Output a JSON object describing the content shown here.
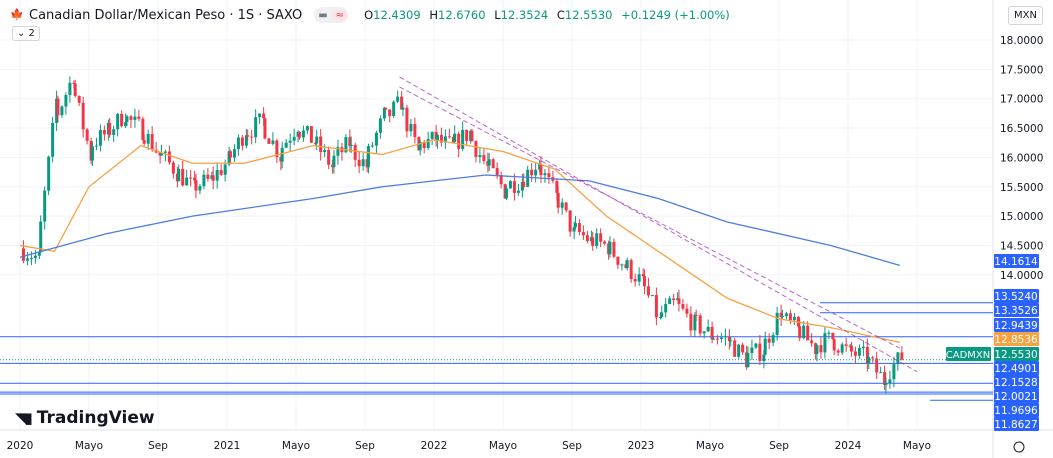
{
  "header": {
    "title": "Canadian Dollar/Mexican Peso · 1S · SAXO",
    "open_label": "O",
    "open": "12.4309",
    "high_label": "H",
    "high": "12.6760",
    "low_label": "L",
    "low": "12.3524",
    "close_label": "C",
    "close": "12.5530",
    "change": "+0.1249 (+1.00%)",
    "indicators_count": "⌄ 2",
    "currency": "MXN"
  },
  "logo": "TradingView",
  "colors": {
    "up": "#089981",
    "down": "#f23645",
    "ma_fast": "#f7a140",
    "ma_slow": "#4c7de0",
    "level": "#2962ff",
    "trend": "#9c27b0"
  },
  "chart_data": {
    "type": "candlestick",
    "symbol_label": "CADMXN",
    "price_ticks": [
      "18.0000",
      "17.5000",
      "17.0000",
      "16.5000",
      "16.0000",
      "15.5000",
      "15.0000",
      "14.5000",
      "14.0000"
    ],
    "time_ticks": [
      {
        "label": "2020",
        "date": "2020-01"
      },
      {
        "label": "Mayo",
        "date": "2020-05"
      },
      {
        "label": "Sep",
        "date": "2020-09"
      },
      {
        "label": "2021",
        "date": "2021-01"
      },
      {
        "label": "Mayo",
        "date": "2021-05"
      },
      {
        "label": "Sep",
        "date": "2021-09"
      },
      {
        "label": "2022",
        "date": "2022-01"
      },
      {
        "label": "Mayo",
        "date": "2022-05"
      },
      {
        "label": "Sep",
        "date": "2022-09"
      },
      {
        "label": "2023",
        "date": "2023-01"
      },
      {
        "label": "Mayo",
        "date": "2023-05"
      },
      {
        "label": "Sep",
        "date": "2023-09"
      },
      {
        "label": "2024",
        "date": "2024-01"
      },
      {
        "label": "Mayo",
        "date": "2024-05"
      }
    ],
    "monthly_close": [
      [
        "2020-01",
        14.45
      ],
      [
        "2020-02",
        14.3
      ],
      [
        "2020-03",
        16.6
      ],
      [
        "2020-04",
        17.3
      ],
      [
        "2020-05",
        16.2
      ],
      [
        "2020-06",
        16.4
      ],
      [
        "2020-07",
        16.7
      ],
      [
        "2020-08",
        16.5
      ],
      [
        "2020-09",
        16.1
      ],
      [
        "2020-10",
        15.8
      ],
      [
        "2020-11",
        15.5
      ],
      [
        "2020-12",
        15.6
      ],
      [
        "2021-01",
        15.9
      ],
      [
        "2021-02",
        16.4
      ],
      [
        "2021-03",
        16.6
      ],
      [
        "2021-04",
        16.1
      ],
      [
        "2021-05",
        16.5
      ],
      [
        "2021-06",
        16.3
      ],
      [
        "2021-07",
        15.9
      ],
      [
        "2021-08",
        16.2
      ],
      [
        "2021-09",
        15.9
      ],
      [
        "2021-10",
        16.6
      ],
      [
        "2021-11",
        16.9
      ],
      [
        "2021-12",
        16.2
      ],
      [
        "2022-01",
        16.3
      ],
      [
        "2022-02",
        16.2
      ],
      [
        "2022-03",
        16.4
      ],
      [
        "2022-04",
        15.9
      ],
      [
        "2022-05",
        15.5
      ],
      [
        "2022-06",
        15.6
      ],
      [
        "2022-07",
        15.9
      ],
      [
        "2022-08",
        15.4
      ],
      [
        "2022-09",
        14.8
      ],
      [
        "2022-10",
        14.6
      ],
      [
        "2022-11",
        14.5
      ],
      [
        "2022-12",
        14.2
      ],
      [
        "2023-01",
        13.9
      ],
      [
        "2023-02",
        13.3
      ],
      [
        "2023-03",
        13.5
      ],
      [
        "2023-04",
        13.2
      ],
      [
        "2023-05",
        13.0
      ],
      [
        "2023-06",
        12.9
      ],
      [
        "2023-07",
        12.6
      ],
      [
        "2023-08",
        12.7
      ],
      [
        "2023-09",
        13.3
      ],
      [
        "2023-10",
        13.1
      ],
      [
        "2023-11",
        12.8
      ],
      [
        "2023-12",
        12.9
      ],
      [
        "2024-01",
        12.7
      ],
      [
        "2024-02",
        12.6
      ],
      [
        "2024-03",
        12.25
      ],
      [
        "2024-04",
        12.553
      ]
    ],
    "ma_fast": [
      [
        "2020-01",
        14.5
      ],
      [
        "2020-03",
        14.4
      ],
      [
        "2020-05",
        15.5
      ],
      [
        "2020-08",
        16.2
      ],
      [
        "2020-11",
        15.9
      ],
      [
        "2021-02",
        15.9
      ],
      [
        "2021-06",
        16.2
      ],
      [
        "2021-10",
        16.05
      ],
      [
        "2022-01",
        16.3
      ],
      [
        "2022-05",
        16.1
      ],
      [
        "2022-08",
        15.8
      ],
      [
        "2022-11",
        15.0
      ],
      [
        "2023-03",
        14.2
      ],
      [
        "2023-06",
        13.6
      ],
      [
        "2023-09",
        13.25
      ],
      [
        "2023-12",
        13.1
      ],
      [
        "2024-04",
        12.85
      ]
    ],
    "ma_slow": [
      [
        "2020-01",
        14.3
      ],
      [
        "2020-06",
        14.7
      ],
      [
        "2020-11",
        15.0
      ],
      [
        "2021-06",
        15.3
      ],
      [
        "2021-10",
        15.5
      ],
      [
        "2022-04",
        15.7
      ],
      [
        "2022-10",
        15.6
      ],
      [
        "2023-02",
        15.3
      ],
      [
        "2023-06",
        14.9
      ],
      [
        "2023-12",
        14.5
      ],
      [
        "2024-04",
        14.16
      ]
    ],
    "trendlines": [
      {
        "from": [
          "2021-11",
          17.37
        ],
        "to": [
          "2024-05",
          12.35
        ]
      },
      {
        "from": [
          "2021-11",
          17.2
        ],
        "to": [
          "2024-04",
          12.75
        ]
      }
    ],
    "price_labels": [
      {
        "value": "14.1614",
        "kind": "ma_slow"
      },
      {
        "value": "13.5240",
        "kind": "level"
      },
      {
        "value": "13.3526",
        "kind": "level"
      },
      {
        "value": "12.9439",
        "kind": "level"
      },
      {
        "value": "12.8536",
        "kind": "ma_fast"
      },
      {
        "value": "12.5530",
        "kind": "last"
      },
      {
        "value": "12.4901",
        "kind": "level"
      },
      {
        "value": "12.1528",
        "kind": "level"
      },
      {
        "value": "12.0021",
        "kind": "level"
      },
      {
        "value": "11.9696",
        "kind": "level"
      },
      {
        "value": "11.8627",
        "kind": "level"
      }
    ]
  }
}
